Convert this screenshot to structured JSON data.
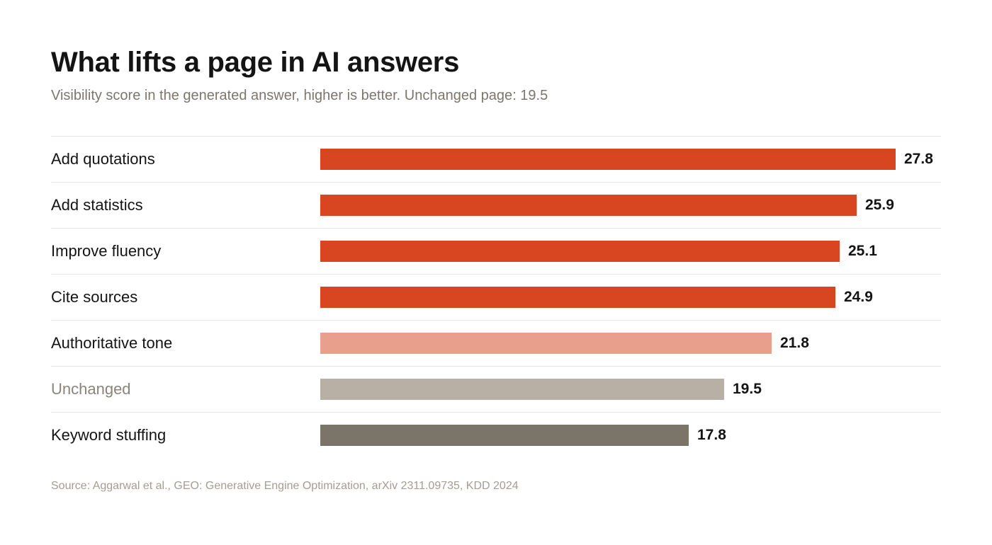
{
  "title": "What lifts a page in AI answers",
  "subtitle": "Visibility score in the generated answer, higher is better. Unchanged page: 19.5",
  "source": "Source: Aggarwal et al., GEO: Generative Engine Optimization, arXiv 2311.09735, KDD 2024",
  "colors": {
    "strong": "#d84521",
    "moderate": "#e89f8c",
    "baseline": "#b8b0a5",
    "negative": "#7b7469"
  },
  "chart_data": {
    "type": "bar",
    "orientation": "horizontal",
    "title": "What lifts a page in AI answers",
    "subtitle": "Visibility score in the generated answer, higher is better. Unchanged page: 19.5",
    "categories": [
      "Add quotations",
      "Add statistics",
      "Improve fluency",
      "Cite sources",
      "Authoritative tone",
      "Unchanged",
      "Keyword stuffing"
    ],
    "values": [
      27.8,
      25.9,
      25.1,
      24.9,
      21.8,
      19.5,
      17.8
    ],
    "value_labels": [
      "27.8",
      "25.9",
      "25.1",
      "24.9",
      "21.8",
      "19.5",
      "17.8"
    ],
    "bar_colors": [
      "strong",
      "strong",
      "strong",
      "strong",
      "moderate",
      "baseline",
      "negative"
    ],
    "baseline_category": "Unchanged",
    "xlim": [
      0,
      27.8
    ],
    "grid": false,
    "legend": "none"
  }
}
